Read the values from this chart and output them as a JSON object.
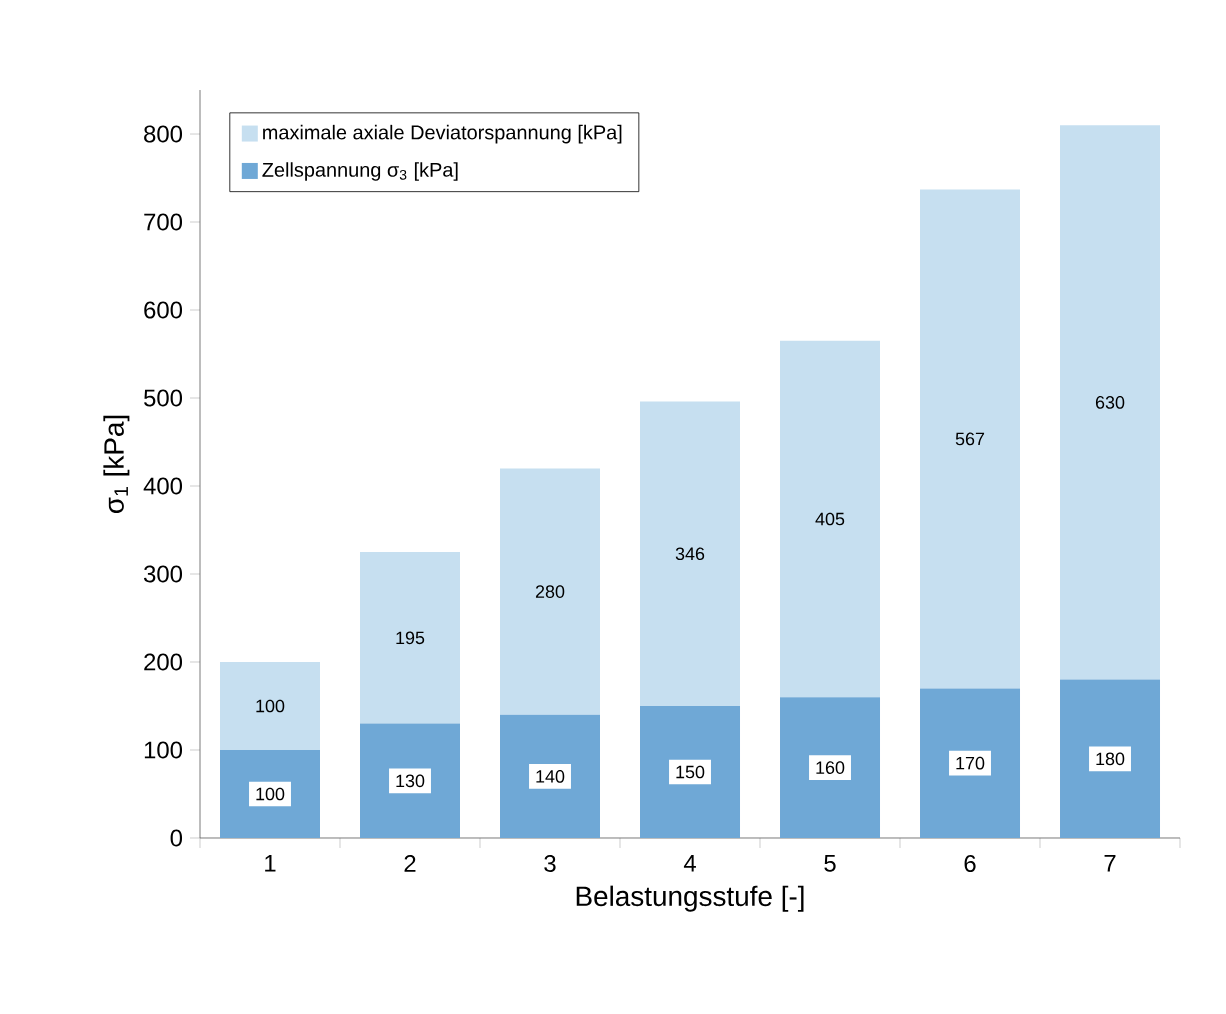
{
  "chart_data": {
    "type": "bar",
    "stacked": true,
    "xlabel": "Belastungsstufe [-]",
    "ylabel": "σ$_{1}$ [kPa]",
    "categories": [
      "1",
      "2",
      "3",
      "4",
      "5",
      "6",
      "7"
    ],
    "series": [
      {
        "name": "Zellspannung σ$_{3}$ [kPa]",
        "color": "#6fa8d6",
        "values": [
          100,
          130,
          140,
          150,
          160,
          170,
          180
        ]
      },
      {
        "name": "maximale axiale Deviatorspannung  [kPa]",
        "color": "#c6dff0",
        "values": [
          100,
          195,
          280,
          346,
          405,
          567,
          630
        ]
      }
    ],
    "ylim": [
      0,
      850
    ],
    "yticks": [
      0,
      100,
      200,
      300,
      400,
      500,
      600,
      700,
      800
    ],
    "grid": false,
    "legend": "top left",
    "data_labels": true
  }
}
